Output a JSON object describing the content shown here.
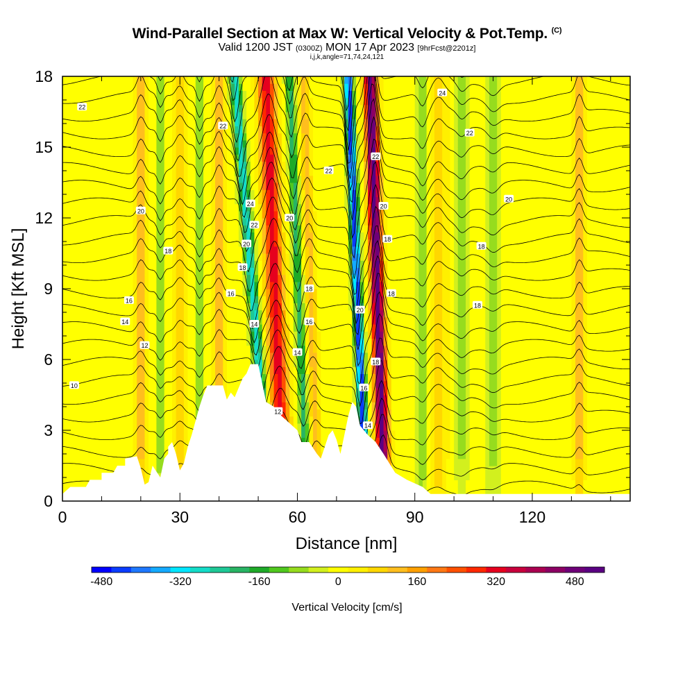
{
  "title": {
    "main": "Wind-Parallel Section at Max W: Vertical Velocity & Pot.Temp.",
    "copyright": "(C)",
    "valid_prefix": "Valid 1200 JST",
    "valid_utc": "(0300Z)",
    "valid_date": "MON 17 Apr 2023",
    "forecast": "[9hrFcst@2201z]",
    "indices": "i,j,k,angle=71,74,24,121"
  },
  "chart_data": {
    "type": "heatmap",
    "xlabel": "Distance [nm]",
    "ylabel": "Height [Kft MSL]",
    "xlim": [
      0,
      145
    ],
    "ylim": [
      0,
      18
    ],
    "x_ticks": [
      0,
      30,
      60,
      90,
      120
    ],
    "y_ticks": [
      0,
      3,
      6,
      9,
      12,
      15,
      18
    ],
    "colorbar": {
      "title": "Vertical Velocity [cm/s]",
      "range": [
        -500,
        540
      ],
      "tick_values": [
        -480,
        -320,
        -160,
        0,
        160,
        320,
        480
      ],
      "tick_labels": [
        "-480",
        "-320",
        "-160",
        "0",
        "160",
        "320",
        "480"
      ],
      "colors": [
        "#0000ff",
        "#0a3cff",
        "#1e78ff",
        "#14aaff",
        "#00e6ff",
        "#14dcc8",
        "#1ec896",
        "#28b464",
        "#1eaa28",
        "#50c81e",
        "#96dc1e",
        "#d2f01e",
        "#ffff00",
        "#fff000",
        "#ffd700",
        "#ffbe1e",
        "#ffa000",
        "#ff7814",
        "#ff5000",
        "#ff2800",
        "#e6001e",
        "#c8003c",
        "#aa0050",
        "#8c0064",
        "#6e0078",
        "#5a0082"
      ]
    },
    "terrain_profile": [
      [
        0,
        0.3
      ],
      [
        2,
        0.6
      ],
      [
        6,
        0.6
      ],
      [
        7,
        0.9
      ],
      [
        10,
        0.9
      ],
      [
        10,
        1.2
      ],
      [
        13,
        1.2
      ],
      [
        14,
        1.5
      ],
      [
        16,
        1.5
      ],
      [
        16,
        1.8
      ],
      [
        19,
        1.9
      ],
      [
        20,
        1.4
      ],
      [
        21,
        0.7
      ],
      [
        22,
        0.8
      ],
      [
        23,
        1.5
      ],
      [
        25,
        1.0
      ],
      [
        26,
        1.8
      ],
      [
        27,
        2.0
      ],
      [
        27,
        2.3
      ],
      [
        28,
        2.5
      ],
      [
        29,
        2.0
      ],
      [
        30,
        1.3
      ],
      [
        31,
        1.6
      ],
      [
        32,
        2.3
      ],
      [
        33,
        2.8
      ],
      [
        35,
        4.0
      ],
      [
        36,
        4.5
      ],
      [
        37,
        4.9
      ],
      [
        41,
        4.9
      ],
      [
        42,
        4.3
      ],
      [
        43,
        4.6
      ],
      [
        44,
        4.4
      ],
      [
        45,
        4.8
      ],
      [
        46,
        5.2
      ],
      [
        47,
        5.4
      ],
      [
        48,
        5.8
      ],
      [
        50,
        5.8
      ],
      [
        51,
        5.0
      ],
      [
        52,
        4.2
      ],
      [
        54,
        4.0
      ],
      [
        56,
        3.6
      ],
      [
        58,
        3.3
      ],
      [
        60,
        3.0
      ],
      [
        61,
        2.5
      ],
      [
        63,
        2.5
      ],
      [
        65,
        2.0
      ],
      [
        66,
        1.8
      ],
      [
        67,
        2.3
      ],
      [
        68,
        2.8
      ],
      [
        69,
        3.0
      ],
      [
        70,
        2.6
      ],
      [
        71,
        2.0
      ],
      [
        72,
        2.8
      ],
      [
        73,
        3.6
      ],
      [
        74,
        4.2
      ],
      [
        75,
        4.0
      ],
      [
        76,
        3.2
      ],
      [
        77,
        3.0
      ],
      [
        78,
        2.8
      ],
      [
        80,
        2.5
      ],
      [
        82,
        2.0
      ],
      [
        85,
        1.2
      ],
      [
        88,
        0.9
      ],
      [
        92,
        0.6
      ],
      [
        94,
        0.3
      ],
      [
        145,
        0.3
      ]
    ],
    "updrafts": [
      {
        "x": 20,
        "w": 120,
        "width": 1.4,
        "tilt": 0.0
      },
      {
        "x": 30,
        "w": 90,
        "width": 1.4,
        "tilt": 0.0
      },
      {
        "x": 40,
        "w": 130,
        "width": 1.3,
        "tilt": 0.0
      },
      {
        "x": 55,
        "w": 330,
        "width": 2.2,
        "tilt": 0.25
      },
      {
        "x": 64,
        "w": 120,
        "width": 1.3,
        "tilt": 0.2
      },
      {
        "x": 81,
        "w": 520,
        "width": 1.6,
        "tilt": 0.2
      },
      {
        "x": 96,
        "w": 100,
        "width": 2.0,
        "tilt": 0.0
      },
      {
        "x": 132,
        "w": 130,
        "width": 1.2,
        "tilt": 0.0
      }
    ],
    "downdrafts": [
      {
        "x": 25,
        "w": -100,
        "width": 1.0,
        "tilt": 0.0
      },
      {
        "x": 35,
        "w": -110,
        "width": 1.0,
        "tilt": 0.0
      },
      {
        "x": 50,
        "w": -300,
        "width": 1.3,
        "tilt": 0.5
      },
      {
        "x": 61,
        "w": -200,
        "width": 1.1,
        "tilt": 0.25
      },
      {
        "x": 76,
        "w": -460,
        "width": 1.1,
        "tilt": 0.25
      },
      {
        "x": 92,
        "w": -100,
        "width": 1.4,
        "tilt": 0.0
      },
      {
        "x": 102,
        "w": -70,
        "width": 1.6,
        "tilt": 0.0
      },
      {
        "x": 110,
        "w": -70,
        "width": 2.0,
        "tilt": 0.0
      }
    ],
    "contour_labels": [
      {
        "x": 5,
        "y": 16.7,
        "text": "22"
      },
      {
        "x": 41,
        "y": 15.9,
        "text": "22"
      },
      {
        "x": 68,
        "y": 14.0,
        "text": "22"
      },
      {
        "x": 80,
        "y": 14.6,
        "text": "22"
      },
      {
        "x": 97,
        "y": 17.3,
        "text": "24"
      },
      {
        "x": 104,
        "y": 15.6,
        "text": "22"
      },
      {
        "x": 114,
        "y": 12.8,
        "text": "20"
      },
      {
        "x": 48,
        "y": 12.6,
        "text": "24"
      },
      {
        "x": 49,
        "y": 11.7,
        "text": "22"
      },
      {
        "x": 82,
        "y": 12.5,
        "text": "20"
      },
      {
        "x": 58,
        "y": 12.0,
        "text": "20"
      },
      {
        "x": 20,
        "y": 12.3,
        "text": "20"
      },
      {
        "x": 47,
        "y": 10.9,
        "text": "20"
      },
      {
        "x": 83,
        "y": 11.1,
        "text": "18"
      },
      {
        "x": 27,
        "y": 10.6,
        "text": "18"
      },
      {
        "x": 46,
        "y": 9.9,
        "text": "18"
      },
      {
        "x": 107,
        "y": 10.8,
        "text": "18"
      },
      {
        "x": 43,
        "y": 8.8,
        "text": "16"
      },
      {
        "x": 63,
        "y": 9.0,
        "text": "18"
      },
      {
        "x": 84,
        "y": 8.8,
        "text": "18"
      },
      {
        "x": 17,
        "y": 8.5,
        "text": "16"
      },
      {
        "x": 106,
        "y": 8.3,
        "text": "18"
      },
      {
        "x": 76,
        "y": 8.1,
        "text": "20"
      },
      {
        "x": 16,
        "y": 7.6,
        "text": "14"
      },
      {
        "x": 49,
        "y": 7.5,
        "text": "14"
      },
      {
        "x": 63,
        "y": 7.6,
        "text": "16"
      },
      {
        "x": 21,
        "y": 6.6,
        "text": "12"
      },
      {
        "x": 60,
        "y": 6.3,
        "text": "14"
      },
      {
        "x": 80,
        "y": 5.9,
        "text": "18"
      },
      {
        "x": 3,
        "y": 4.9,
        "text": "10"
      },
      {
        "x": 77,
        "y": 4.8,
        "text": "16"
      },
      {
        "x": 55,
        "y": 3.8,
        "text": "12"
      },
      {
        "x": 78,
        "y": 3.2,
        "text": "14"
      }
    ]
  }
}
